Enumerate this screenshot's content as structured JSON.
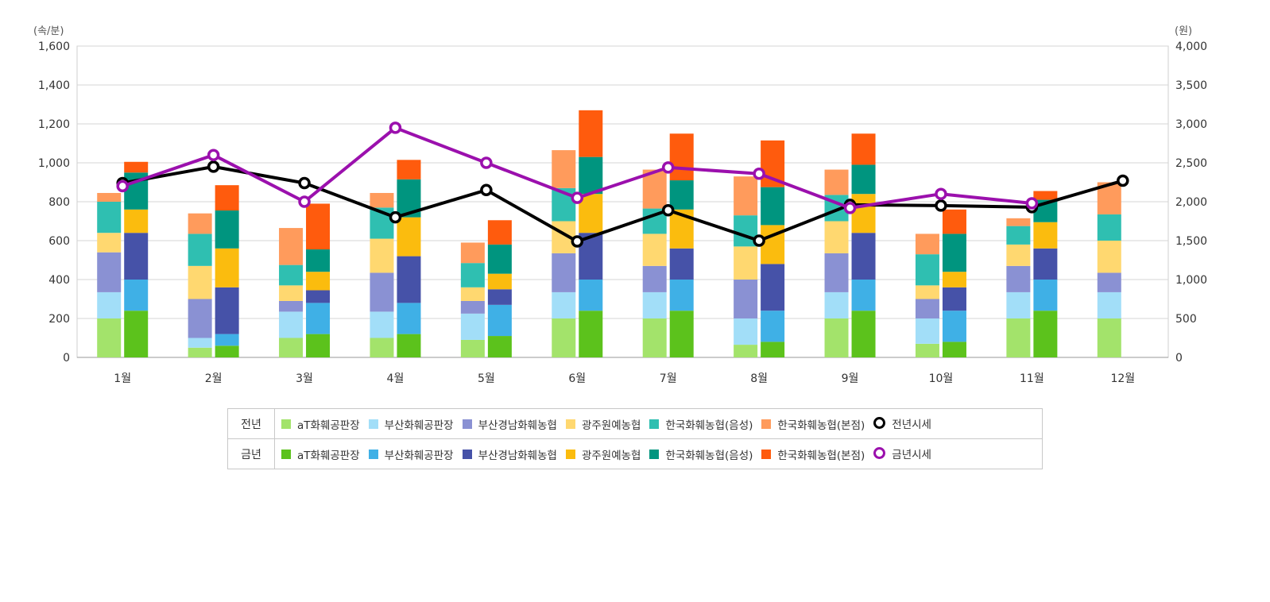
{
  "left_unit": "(속/분)",
  "right_unit": "(원)",
  "chart_data": {
    "type": "bar",
    "stacked": true,
    "grid": true,
    "categories": [
      "1월",
      "2월",
      "3월",
      "4월",
      "5월",
      "6월",
      "7월",
      "8월",
      "9월",
      "10월",
      "11월",
      "12월"
    ],
    "y_left": {
      "range": [
        0,
        1600
      ],
      "ticks": [
        "0",
        "200",
        "400",
        "600",
        "800",
        "1,000",
        "1,200",
        "1,400",
        "1,600"
      ]
    },
    "y_right": {
      "range": [
        0,
        4000
      ],
      "ticks": [
        "0",
        "500",
        "1,000",
        "1,500",
        "2,000",
        "2,500",
        "3,000",
        "3,500",
        "4,000"
      ]
    },
    "bar_groups": [
      {
        "name": "전년",
        "series": [
          {
            "name": "aT화훼공판장",
            "color": "#a3e36b",
            "values": [
              200,
              50,
              100,
              100,
              90,
              200,
              200,
              65,
              200,
              70,
              200,
              200
            ]
          },
          {
            "name": "부산화훼공판장",
            "color": "#a2def8",
            "values": [
              135,
              50,
              135,
              135,
              135,
              135,
              135,
              135,
              135,
              130,
              135,
              135
            ]
          },
          {
            "name": "부산경남화훼농협",
            "color": "#8a91d3",
            "values": [
              205,
              200,
              55,
              200,
              65,
              200,
              135,
              200,
              200,
              100,
              135,
              100
            ]
          },
          {
            "name": "광주원예농협",
            "color": "#ffd870",
            "values": [
              100,
              170,
              80,
              175,
              70,
              165,
              165,
              170,
              165,
              70,
              110,
              165
            ]
          },
          {
            "name": "한국화훼농협(음성)",
            "color": "#2fbfb1",
            "values": [
              160,
              165,
              105,
              160,
              125,
              170,
              130,
              160,
              135,
              160,
              95,
              135
            ]
          },
          {
            "name": "한국화훼농협(본점)",
            "color": "#ff9b5c",
            "values": [
              45,
              105,
              190,
              75,
              105,
              195,
              200,
              200,
              130,
              105,
              40,
              165
            ]
          }
        ]
      },
      {
        "name": "금년",
        "series": [
          {
            "name": "aT화훼공판장",
            "color": "#5cc21c",
            "values": [
              240,
              60,
              120,
              120,
              110,
              240,
              240,
              80,
              240,
              80,
              240,
              null
            ]
          },
          {
            "name": "부산화훼공판장",
            "color": "#3fb0e6",
            "values": [
              160,
              60,
              160,
              160,
              160,
              160,
              160,
              160,
              160,
              160,
              160,
              null
            ]
          },
          {
            "name": "부산경남화훼농협",
            "color": "#4652a8",
            "values": [
              240,
              240,
              65,
              240,
              80,
              240,
              160,
              240,
              240,
              120,
              160,
              null
            ]
          },
          {
            "name": "광주원예농협",
            "color": "#fbbc0e",
            "values": [
              120,
              200,
              95,
              200,
              80,
              200,
              200,
              200,
              200,
              80,
              135,
              null
            ]
          },
          {
            "name": "한국화훼농협(음성)",
            "color": "#00957f",
            "values": [
              190,
              195,
              115,
              195,
              150,
              190,
              150,
              195,
              150,
              195,
              115,
              null
            ]
          },
          {
            "name": "한국화훼농협(본점)",
            "color": "#ff5b0d",
            "values": [
              55,
              130,
              235,
              100,
              125,
              240,
              240,
              240,
              160,
              125,
              45,
              null
            ]
          }
        ]
      }
    ],
    "lines": [
      {
        "name": "전년시세",
        "color": "#000000",
        "axis": "right",
        "values": [
          2240,
          2450,
          2240,
          1800,
          2150,
          1490,
          1890,
          1500,
          1960,
          1950,
          1930,
          2270
        ]
      },
      {
        "name": "금년시세",
        "color": "#9b10ad",
        "axis": "right",
        "values": [
          2200,
          2600,
          2000,
          2950,
          2500,
          2050,
          2440,
          2360,
          1920,
          2100,
          1980,
          null
        ]
      }
    ]
  },
  "legend": {
    "rows": [
      {
        "label": "전년",
        "items": [
          {
            "label": "aT화훼공판장",
            "color": "#a3e36b",
            "kind": "bar"
          },
          {
            "label": "부산화훼공판장",
            "color": "#a2def8",
            "kind": "bar"
          },
          {
            "label": "부산경남화훼농협",
            "color": "#8a91d3",
            "kind": "bar"
          },
          {
            "label": "광주원예농협",
            "color": "#ffd870",
            "kind": "bar"
          },
          {
            "label": "한국화훼농협(음성)",
            "color": "#2fbfb1",
            "kind": "bar"
          },
          {
            "label": "한국화훼농협(본점)",
            "color": "#ff9b5c",
            "kind": "bar"
          },
          {
            "label": "전년시세",
            "color": "#000000",
            "kind": "line"
          }
        ]
      },
      {
        "label": "금년",
        "items": [
          {
            "label": "aT화훼공판장",
            "color": "#5cc21c",
            "kind": "bar"
          },
          {
            "label": "부산화훼공판장",
            "color": "#3fb0e6",
            "kind": "bar"
          },
          {
            "label": "부산경남화훼농협",
            "color": "#4652a8",
            "kind": "bar"
          },
          {
            "label": "광주원예농협",
            "color": "#fbbc0e",
            "kind": "bar"
          },
          {
            "label": "한국화훼농협(음성)",
            "color": "#00957f",
            "kind": "bar"
          },
          {
            "label": "한국화훼농협(본점)",
            "color": "#ff5b0d",
            "kind": "bar"
          },
          {
            "label": "금년시세",
            "color": "#9b10ad",
            "kind": "line"
          }
        ]
      }
    ]
  }
}
